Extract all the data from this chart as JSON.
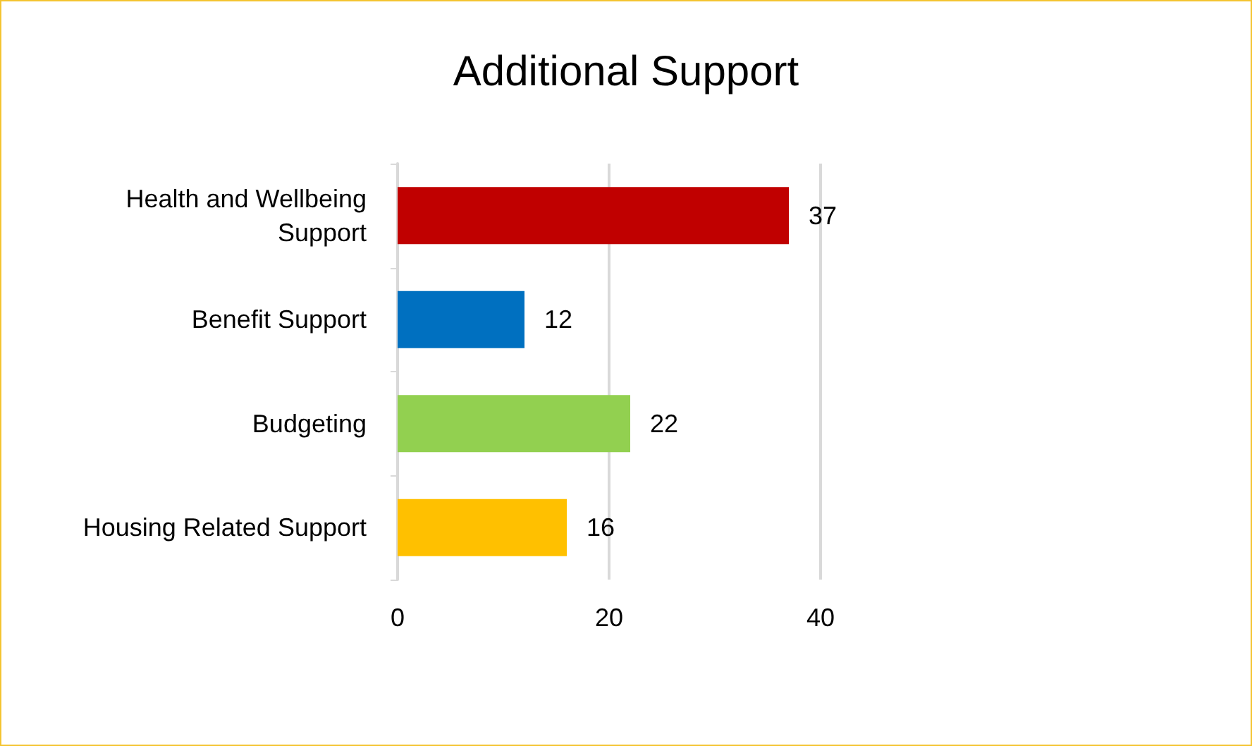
{
  "chart_data": {
    "type": "bar",
    "title": "Additional Support",
    "orientation": "horizontal",
    "categories": [
      "Health and Wellbeing\nSupport",
      "Benefit Support",
      "Budgeting",
      "Housing Related Support"
    ],
    "values": [
      37,
      12,
      22,
      16
    ],
    "colors": [
      "#c00000",
      "#0070c0",
      "#92d050",
      "#ffc000"
    ],
    "xlim": [
      0,
      40
    ],
    "xticks": [
      0,
      20,
      40
    ],
    "grid": "x",
    "data_labels": true
  }
}
